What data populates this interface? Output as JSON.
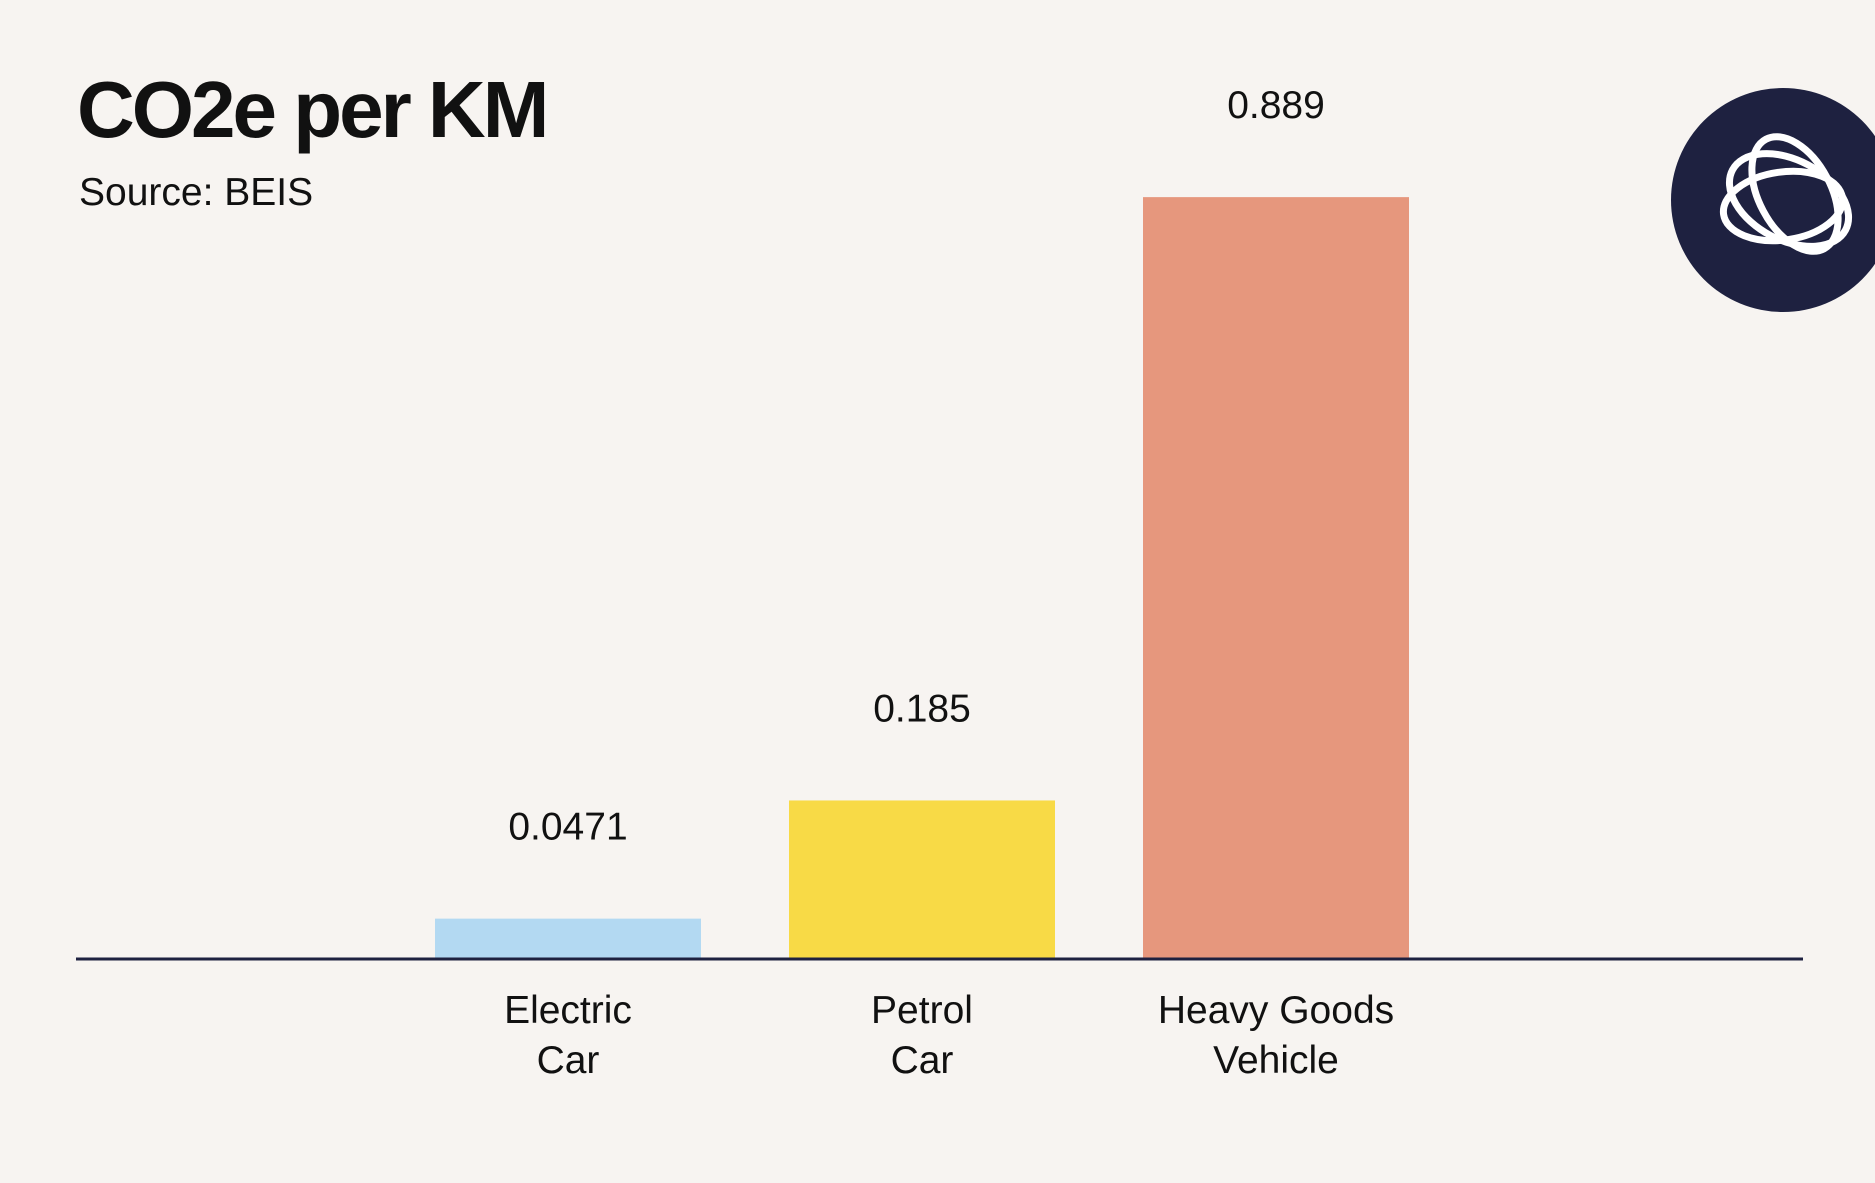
{
  "title": "CO2e per KM",
  "subtitle": "Source: BEIS",
  "logo": {
    "icon": "overlapping-rings-logo-icon",
    "background": "#1e2140",
    "stroke": "#ffffff"
  },
  "chart_data": {
    "type": "bar",
    "title": "CO2e per KM",
    "subtitle": "Source: BEIS",
    "categories": [
      [
        "Electric",
        "Car"
      ],
      [
        "Petrol",
        "Car"
      ],
      [
        "Heavy Goods",
        "Vehicle"
      ]
    ],
    "values": [
      0.0471,
      0.185,
      0.889
    ],
    "value_labels": [
      "0.0471",
      "0.185",
      "0.889"
    ],
    "colors": [
      "#b3d9f2",
      "#f8da46",
      "#e6977d"
    ],
    "axis_color": "#1e2140",
    "ylim": [
      0,
      1
    ],
    "grid": false,
    "legend": "none",
    "xlabel": "",
    "ylabel": ""
  }
}
